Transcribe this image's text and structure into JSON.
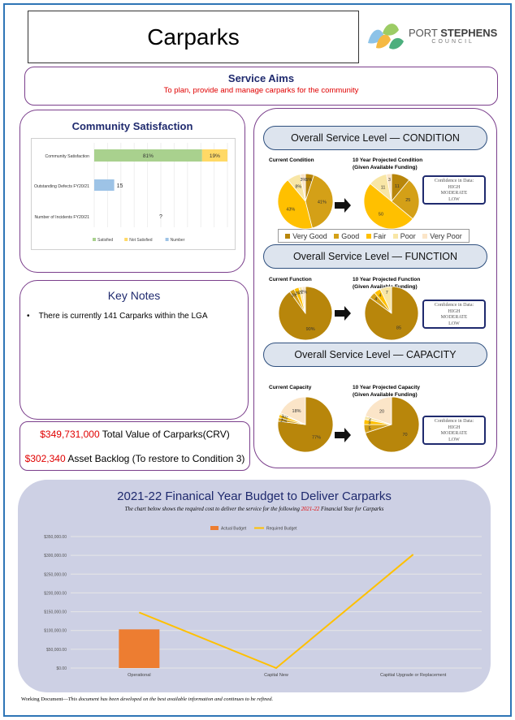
{
  "header": {
    "title": "Carparks",
    "logo_main_a": "PORT ",
    "logo_main_b": "STEPHENS",
    "logo_sub": "COUNCIL"
  },
  "service_aims": {
    "title": "Service Aims",
    "text": "To plan, provide and manage carparks for the community"
  },
  "community_satisfaction": {
    "title": "Community Satisfaction",
    "rows": [
      {
        "label": "Community Satisfaction",
        "satisfied_pct": 81,
        "not_satisfied_pct": 19,
        "satisfied_label": "81%",
        "not_satisfied_label": "19%"
      },
      {
        "label": "Outstanding Defects FY20/21",
        "number": 15,
        "number_label": "15"
      },
      {
        "label": "Number of Incidents FY20/21",
        "number_label": "?"
      }
    ],
    "legend": [
      "Satisfied",
      "Not Satisfied",
      "Number"
    ],
    "colors": {
      "satisfied": "#a9d18e",
      "not_satisfied": "#ffd966",
      "number": "#9dc3e6"
    }
  },
  "key_notes": {
    "title": "Key Notes",
    "items": [
      "There is currently 141 Carparks within the LGA"
    ]
  },
  "values": {
    "crv_amount": "$349,731,000",
    "crv_label": "Total Value of Carparks(CRV)",
    "backlog_amount": "$302,340",
    "backlog_label": "Asset Backlog (To restore to Condition 3)"
  },
  "service_levels": {
    "condition": {
      "title": "Overall Service Level — CONDITION",
      "current_label": "Current Condition",
      "projected_label_1": "10 Year Projected Condition",
      "projected_label_2": "(Given Available Funding)",
      "current": [
        5,
        41,
        43,
        8,
        3
      ],
      "current_labels": [
        "5%",
        "41%",
        "43%",
        "8%",
        "3%"
      ],
      "projected": [
        11,
        25,
        50,
        11,
        3
      ],
      "projected_labels": [
        "11",
        "25",
        "50",
        "11",
        "3"
      ]
    },
    "function": {
      "title": "Overall Service Level — FUNCTION",
      "current_label": "Current Function",
      "projected_label_1": "10 Year Projected Function",
      "projected_label_2": "(Given Available Funding)",
      "current": [
        90,
        3,
        3,
        2,
        2
      ],
      "current_labels": [
        "90%",
        "3%",
        "3%",
        "2%",
        "2%"
      ],
      "projected": [
        85,
        4,
        4,
        7,
        0
      ],
      "projected_labels": [
        "85",
        "4",
        "4",
        "7",
        ""
      ]
    },
    "capacity": {
      "title": "Overall Service Level — CAPACITY",
      "current_label": "Current Capacity",
      "projected_label_1": "10 Year Projected Capacity",
      "projected_label_2": "(Given Available Funding)",
      "current": [
        77,
        2,
        2,
        1,
        18
      ],
      "current_labels": [
        "77%",
        "2%",
        "2%",
        "1%",
        "18%"
      ],
      "projected": [
        70,
        5,
        3,
        2,
        20
      ],
      "projected_labels": [
        "70",
        "5",
        "3",
        "2",
        "20"
      ]
    },
    "legend": [
      "Very Good",
      "Good",
      "Fair",
      "Poor",
      "Very Poor"
    ],
    "colors": [
      "#b8860b",
      "#d4a017",
      "#ffc000",
      "#f8e6a6",
      "#fbe5c8"
    ],
    "confidence": {
      "title": "Confidence in Data:",
      "levels": [
        "HIGH",
        "MODERATE",
        "LOW"
      ]
    }
  },
  "budget": {
    "title": "2021-22 Finanical Year Budget to Deliver Carparks",
    "sub_a": "The chart below shows the required cost to deliver the service for the following ",
    "sub_year": "2021-22",
    "sub_b": " Financial Year for Carparks"
  },
  "chart_data": {
    "type": "bar",
    "categories": [
      "Operational",
      "Capital New",
      "Capitial Upgrade or Replacement"
    ],
    "series": [
      {
        "name": "Actual Budget",
        "type": "bar",
        "values": [
          103000,
          0,
          0
        ]
      },
      {
        "name": "Required Budget",
        "type": "line",
        "values": [
          148000,
          0,
          302340
        ]
      }
    ],
    "ylim": [
      0,
      350000
    ],
    "yticks": [
      "$0.00",
      "$50,000.00",
      "$100,000.00",
      "$150,000.00",
      "$200,000.00",
      "$250,000.00",
      "$300,000.00",
      "$350,000.00"
    ],
    "colors": {
      "actual": "#ed7d31",
      "required": "#ffc000"
    }
  },
  "footer": {
    "lead": "Working Document—",
    "text": "This document has been developed on the best available information and continues to be refined."
  }
}
